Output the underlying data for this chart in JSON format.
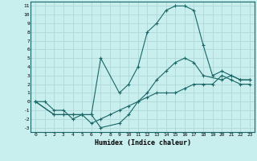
{
  "xlabel": "Humidex (Indice chaleur)",
  "bg_color": "#c8eeee",
  "grid_color": "#b0d8d8",
  "line_color": "#1a6666",
  "xlim": [
    -0.5,
    23.5
  ],
  "ylim": [
    -3.5,
    11.5
  ],
  "xticks": [
    0,
    1,
    2,
    3,
    4,
    5,
    6,
    7,
    8,
    9,
    10,
    11,
    12,
    13,
    14,
    15,
    16,
    17,
    18,
    19,
    20,
    21,
    22,
    23
  ],
  "yticks": [
    -3,
    -2,
    -1,
    0,
    1,
    2,
    3,
    4,
    5,
    6,
    7,
    8,
    9,
    10,
    11
  ],
  "lines": [
    {
      "x": [
        0,
        1,
        2,
        3,
        4,
        5,
        6,
        7,
        8,
        9,
        10,
        11,
        12,
        13,
        14,
        15,
        16,
        17,
        18,
        19,
        20,
        21,
        22,
        23
      ],
      "y": [
        0,
        0,
        -1,
        -1,
        -2,
        -1.5,
        -2.5,
        -2,
        -1.5,
        -1,
        -0.5,
        0,
        0.5,
        1,
        1,
        1,
        1.5,
        2,
        2,
        2,
        3,
        2.5,
        2,
        2
      ]
    },
    {
      "x": [
        0,
        2,
        3,
        4,
        5,
        6,
        7,
        9,
        10,
        11,
        12,
        13,
        14,
        15,
        16,
        17,
        18,
        20,
        21,
        22,
        23
      ],
      "y": [
        0,
        -1.5,
        -1.5,
        -1.5,
        -1.5,
        -1.5,
        -3,
        -2.5,
        -1.5,
        0,
        1,
        2.5,
        3.5,
        4.5,
        5,
        4.5,
        3,
        2.5,
        3,
        2.5,
        2.5
      ]
    },
    {
      "x": [
        0,
        2,
        3,
        4,
        5,
        6,
        7,
        9,
        10,
        11,
        12,
        13,
        14,
        15,
        16,
        17,
        18,
        19,
        20,
        21,
        22,
        23
      ],
      "y": [
        0,
        -1.5,
        -1.5,
        -1.5,
        -1.5,
        -1.5,
        5,
        1,
        2,
        4,
        8,
        9,
        10.5,
        11,
        11,
        10.5,
        6.5,
        3,
        3.5,
        3,
        2.5,
        2.5
      ]
    }
  ]
}
